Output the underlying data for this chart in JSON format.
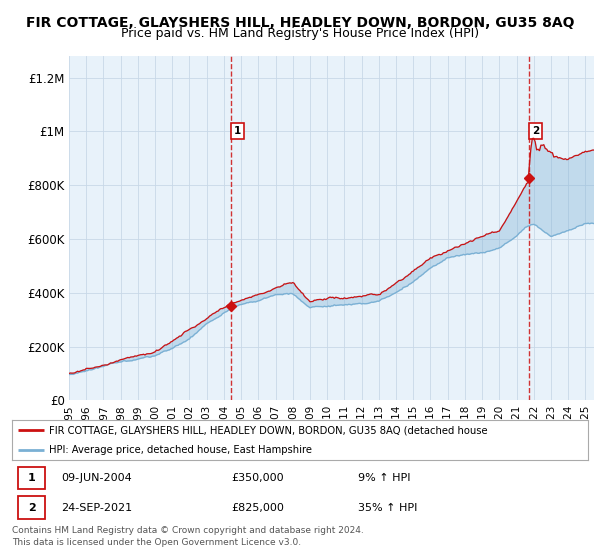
{
  "title": "FIR COTTAGE, GLAYSHERS HILL, HEADLEY DOWN, BORDON, GU35 8AQ",
  "subtitle": "Price paid vs. HM Land Registry's House Price Index (HPI)",
  "ylabel_ticks": [
    "£0",
    "£200K",
    "£400K",
    "£600K",
    "£800K",
    "£1M",
    "£1.2M"
  ],
  "ytick_values": [
    0,
    200000,
    400000,
    600000,
    800000,
    1000000,
    1200000
  ],
  "ylim": [
    0,
    1280000
  ],
  "xlim_start": 1995.0,
  "xlim_end": 2025.5,
  "hpi_color": "#7ab0d4",
  "price_color": "#cc1111",
  "fill_color": "#dae8f5",
  "chart_bg": "#e8f2fa",
  "sale1_x": 2004.44,
  "sale1_y": 350000,
  "sale2_x": 2021.73,
  "sale2_y": 825000,
  "legend_label1": "FIR COTTAGE, GLAYSHERS HILL, HEADLEY DOWN, BORDON, GU35 8AQ (detached house",
  "legend_label2": "HPI: Average price, detached house, East Hampshire",
  "footer1": "Contains HM Land Registry data © Crown copyright and database right 2024.",
  "footer2": "This data is licensed under the Open Government Licence v3.0.",
  "bg_color": "#ffffff",
  "grid_color": "#c8d8e8",
  "title_fontsize": 10,
  "subtitle_fontsize": 9
}
